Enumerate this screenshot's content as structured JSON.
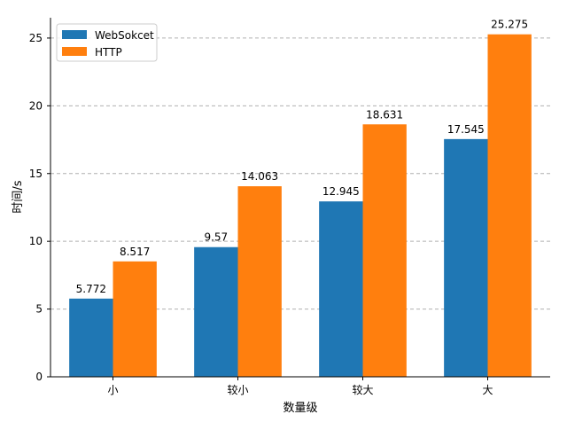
{
  "chart_data": {
    "type": "bar",
    "title": "",
    "xlabel": "数量级",
    "ylabel": "时间/s",
    "categories": [
      "小",
      "较小",
      "较大",
      "大"
    ],
    "series": [
      {
        "name": "WebSokcet",
        "values": [
          5.772,
          9.57,
          12.945,
          17.545
        ],
        "labels": [
          "5.772",
          "9.57",
          "12.945",
          "17.545"
        ],
        "color": "#1f77b4"
      },
      {
        "name": "HTTP",
        "values": [
          8.517,
          14.063,
          18.631,
          25.275
        ],
        "labels": [
          "8.517",
          "14.063",
          "18.631",
          "25.275"
        ],
        "color": "#ff7f0e"
      }
    ],
    "ylim": [
      0,
      26.5
    ],
    "yticks": [
      0,
      5,
      10,
      15,
      20,
      25
    ],
    "grid": {
      "axis": "y",
      "style": "dashed",
      "color": "#b0b0b0"
    },
    "legend": {
      "placement": "top-left"
    }
  }
}
